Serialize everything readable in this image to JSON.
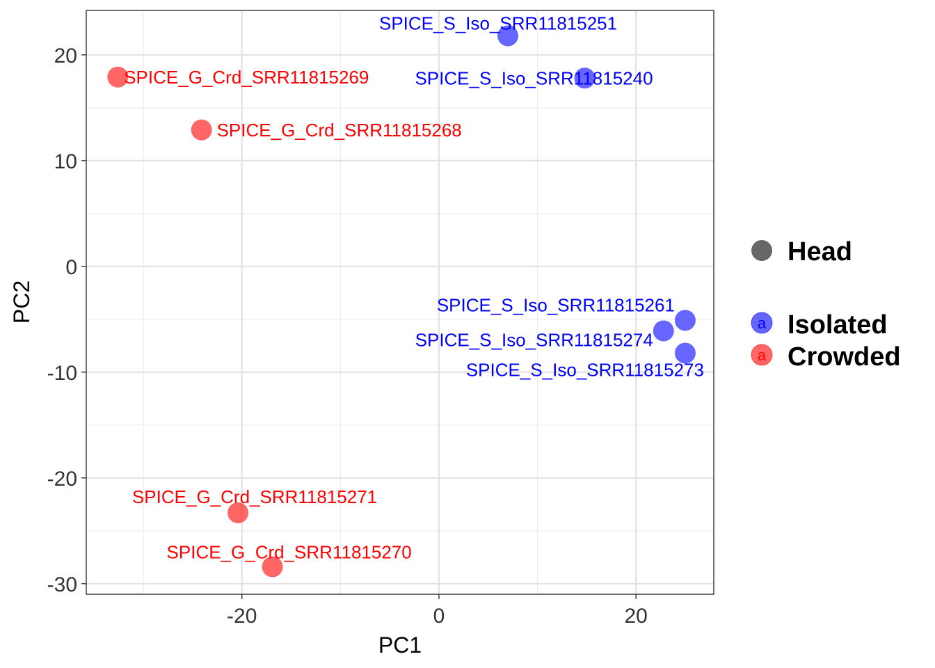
{
  "chart_data": {
    "type": "scatter",
    "xlabel": "PC1",
    "ylabel": "PC2",
    "xlim": [
      -35.8,
      27.9
    ],
    "ylim": [
      -31.0,
      24.2
    ],
    "xticks": [
      -20,
      0,
      20
    ],
    "yticks": [
      20,
      10,
      0,
      -10,
      -20,
      -30
    ],
    "xtick_labels": [
      "-20",
      "0",
      "20"
    ],
    "ytick_labels": [
      "20",
      "10",
      "0",
      "-10",
      "-20",
      "-30"
    ],
    "grid": true,
    "legend_position": "right",
    "legend": {
      "shape_title": "Head",
      "groups": [
        {
          "name": "Isolated",
          "color": "#0000FF",
          "key_glyph": "a"
        },
        {
          "name": "Crowded",
          "color": "#FF0000",
          "key_glyph": "a"
        }
      ]
    },
    "points": [
      {
        "label": "SPICE_S_Iso_SRR11815251",
        "group": "Isolated",
        "x": 7.0,
        "y": 21.8
      },
      {
        "label": "SPICE_S_Iso_SRR11815240",
        "group": "Isolated",
        "x": 14.8,
        "y": 17.8
      },
      {
        "label": "SPICE_S_Iso_SRR11815261",
        "group": "Isolated",
        "x": 25.0,
        "y": -5.1
      },
      {
        "label": "SPICE_S_Iso_SRR11815274",
        "group": "Isolated",
        "x": 22.8,
        "y": -6.1
      },
      {
        "label": "SPICE_S_Iso_SRR11815273",
        "group": "Isolated",
        "x": 25.0,
        "y": -8.2
      },
      {
        "label": "SPICE_G_Crd_SRR11815269",
        "group": "Crowded",
        "x": -32.6,
        "y": 17.9
      },
      {
        "label": "SPICE_G_Crd_SRR11815268",
        "group": "Crowded",
        "x": -24.1,
        "y": 12.9
      },
      {
        "label": "SPICE_G_Crd_SRR11815271",
        "group": "Crowded",
        "x": -20.4,
        "y": -23.3
      },
      {
        "label": "SPICE_G_Crd_SRR11815270",
        "group": "Crowded",
        "x": -16.9,
        "y": -28.4
      }
    ]
  }
}
